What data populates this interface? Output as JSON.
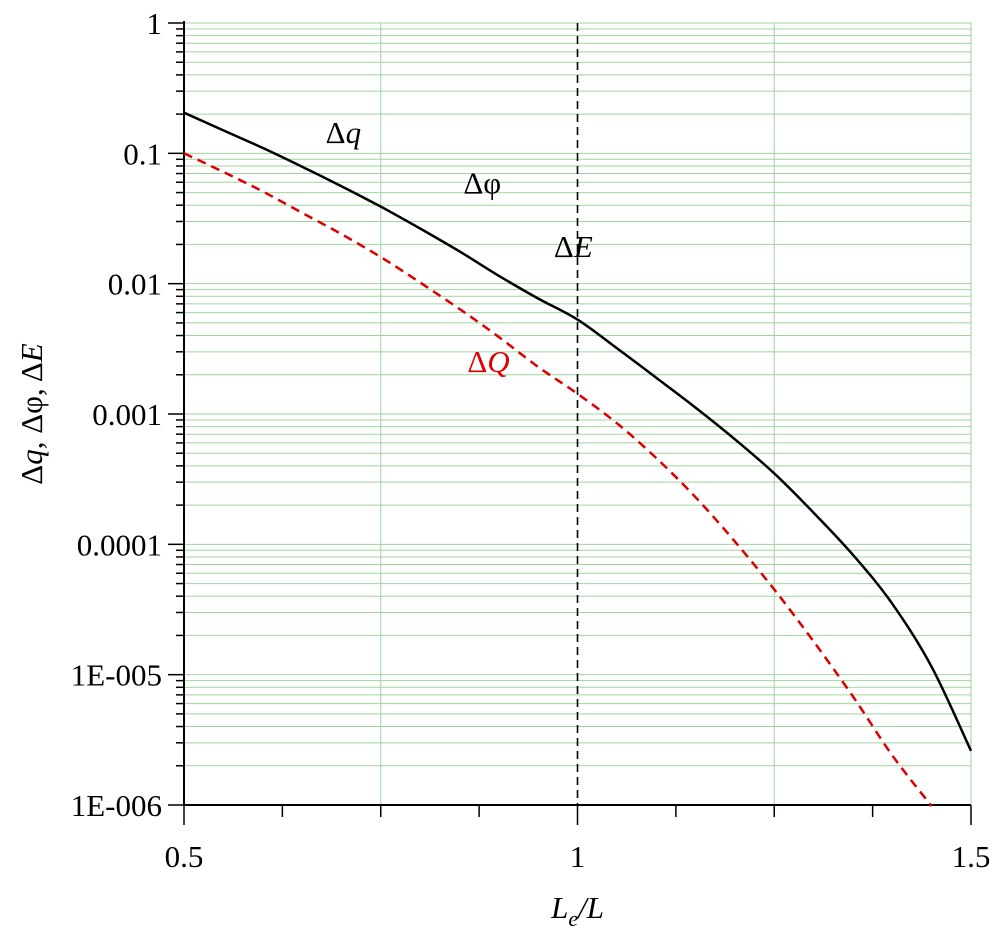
{
  "chart_data": {
    "type": "line",
    "title": "",
    "xlabel_parts": {
      "main": "L",
      "sub": "e",
      "rest": "/L"
    },
    "ylabel_parts": [
      "Δ",
      "q",
      ", Δφ, Δ",
      "E"
    ],
    "xlim": [
      0.5,
      1.5
    ],
    "ylim": [
      1e-06,
      1
    ],
    "y_scale": "log",
    "grid": true,
    "grid_color": "#9fd49f",
    "x_ticks": [
      {
        "value": 0.5,
        "label": "0.5"
      },
      {
        "value": 1.0,
        "label": "1"
      },
      {
        "value": 1.5,
        "label": "1.5"
      }
    ],
    "x_minor_step": 0.125,
    "x_grid_values": [
      0.75,
      1.25
    ],
    "y_ticks": [
      {
        "value": 1,
        "label": "1"
      },
      {
        "value": 0.1,
        "label": "0.1"
      },
      {
        "value": 0.01,
        "label": "0.01"
      },
      {
        "value": 0.001,
        "label": "0.001"
      },
      {
        "value": 0.0001,
        "label": "0.0001"
      },
      {
        "value": 1e-05,
        "label": "1E-005"
      },
      {
        "value": 1e-06,
        "label": "1E-006"
      }
    ],
    "reference_line": {
      "x": 1.0,
      "style": "dashed",
      "color": "#000000"
    },
    "series": [
      {
        "color": "#000000",
        "style": "solid",
        "x": [
          0.5,
          0.55,
          0.6,
          0.65,
          0.7,
          0.75,
          0.8,
          0.85,
          0.9,
          0.95,
          1.0,
          1.05,
          1.1,
          1.15,
          1.2,
          1.25,
          1.3,
          1.35,
          1.4,
          1.45,
          1.5
        ],
        "y": [
          0.205,
          0.15,
          0.11,
          0.079,
          0.056,
          0.039,
          0.0265,
          0.0177,
          0.0115,
          0.0077,
          0.0053,
          0.0032,
          0.0019,
          0.00112,
          0.00064,
          0.00035,
          0.000175,
          8.3e-05,
          3.5e-05,
          1.15e-05,
          2.6e-06
        ]
      },
      {
        "color": "#dd0000",
        "style": "dashed",
        "x": [
          0.5,
          0.55,
          0.6,
          0.65,
          0.7,
          0.75,
          0.8,
          0.85,
          0.9,
          0.95,
          1.0,
          1.05,
          1.1,
          1.15,
          1.2,
          1.25,
          1.3,
          1.35,
          1.4,
          1.45
        ],
        "y": [
          0.1,
          0.072,
          0.051,
          0.035,
          0.024,
          0.016,
          0.0102,
          0.0064,
          0.0039,
          0.0023,
          0.00143,
          0.00085,
          0.00046,
          0.00023,
          0.000105,
          4.5e-05,
          1.8e-05,
          6.8e-06,
          2.4e-06,
          9.8e-07
        ]
      }
    ],
    "annotations": [
      {
        "parts": [
          "Δ",
          "q"
        ],
        "x": 0.68,
        "y": 0.12,
        "color": "#000000"
      },
      {
        "parts": [
          "Δφ",
          ""
        ],
        "x": 0.855,
        "y": 0.049,
        "color": "#000000"
      },
      {
        "parts": [
          "Δ",
          "E"
        ],
        "x": 0.97,
        "y": 0.016,
        "color": "#000000"
      },
      {
        "parts": [
          "Δ",
          "Q"
        ],
        "x": 0.86,
        "y": 0.0021,
        "color": "#dd0000"
      }
    ]
  }
}
